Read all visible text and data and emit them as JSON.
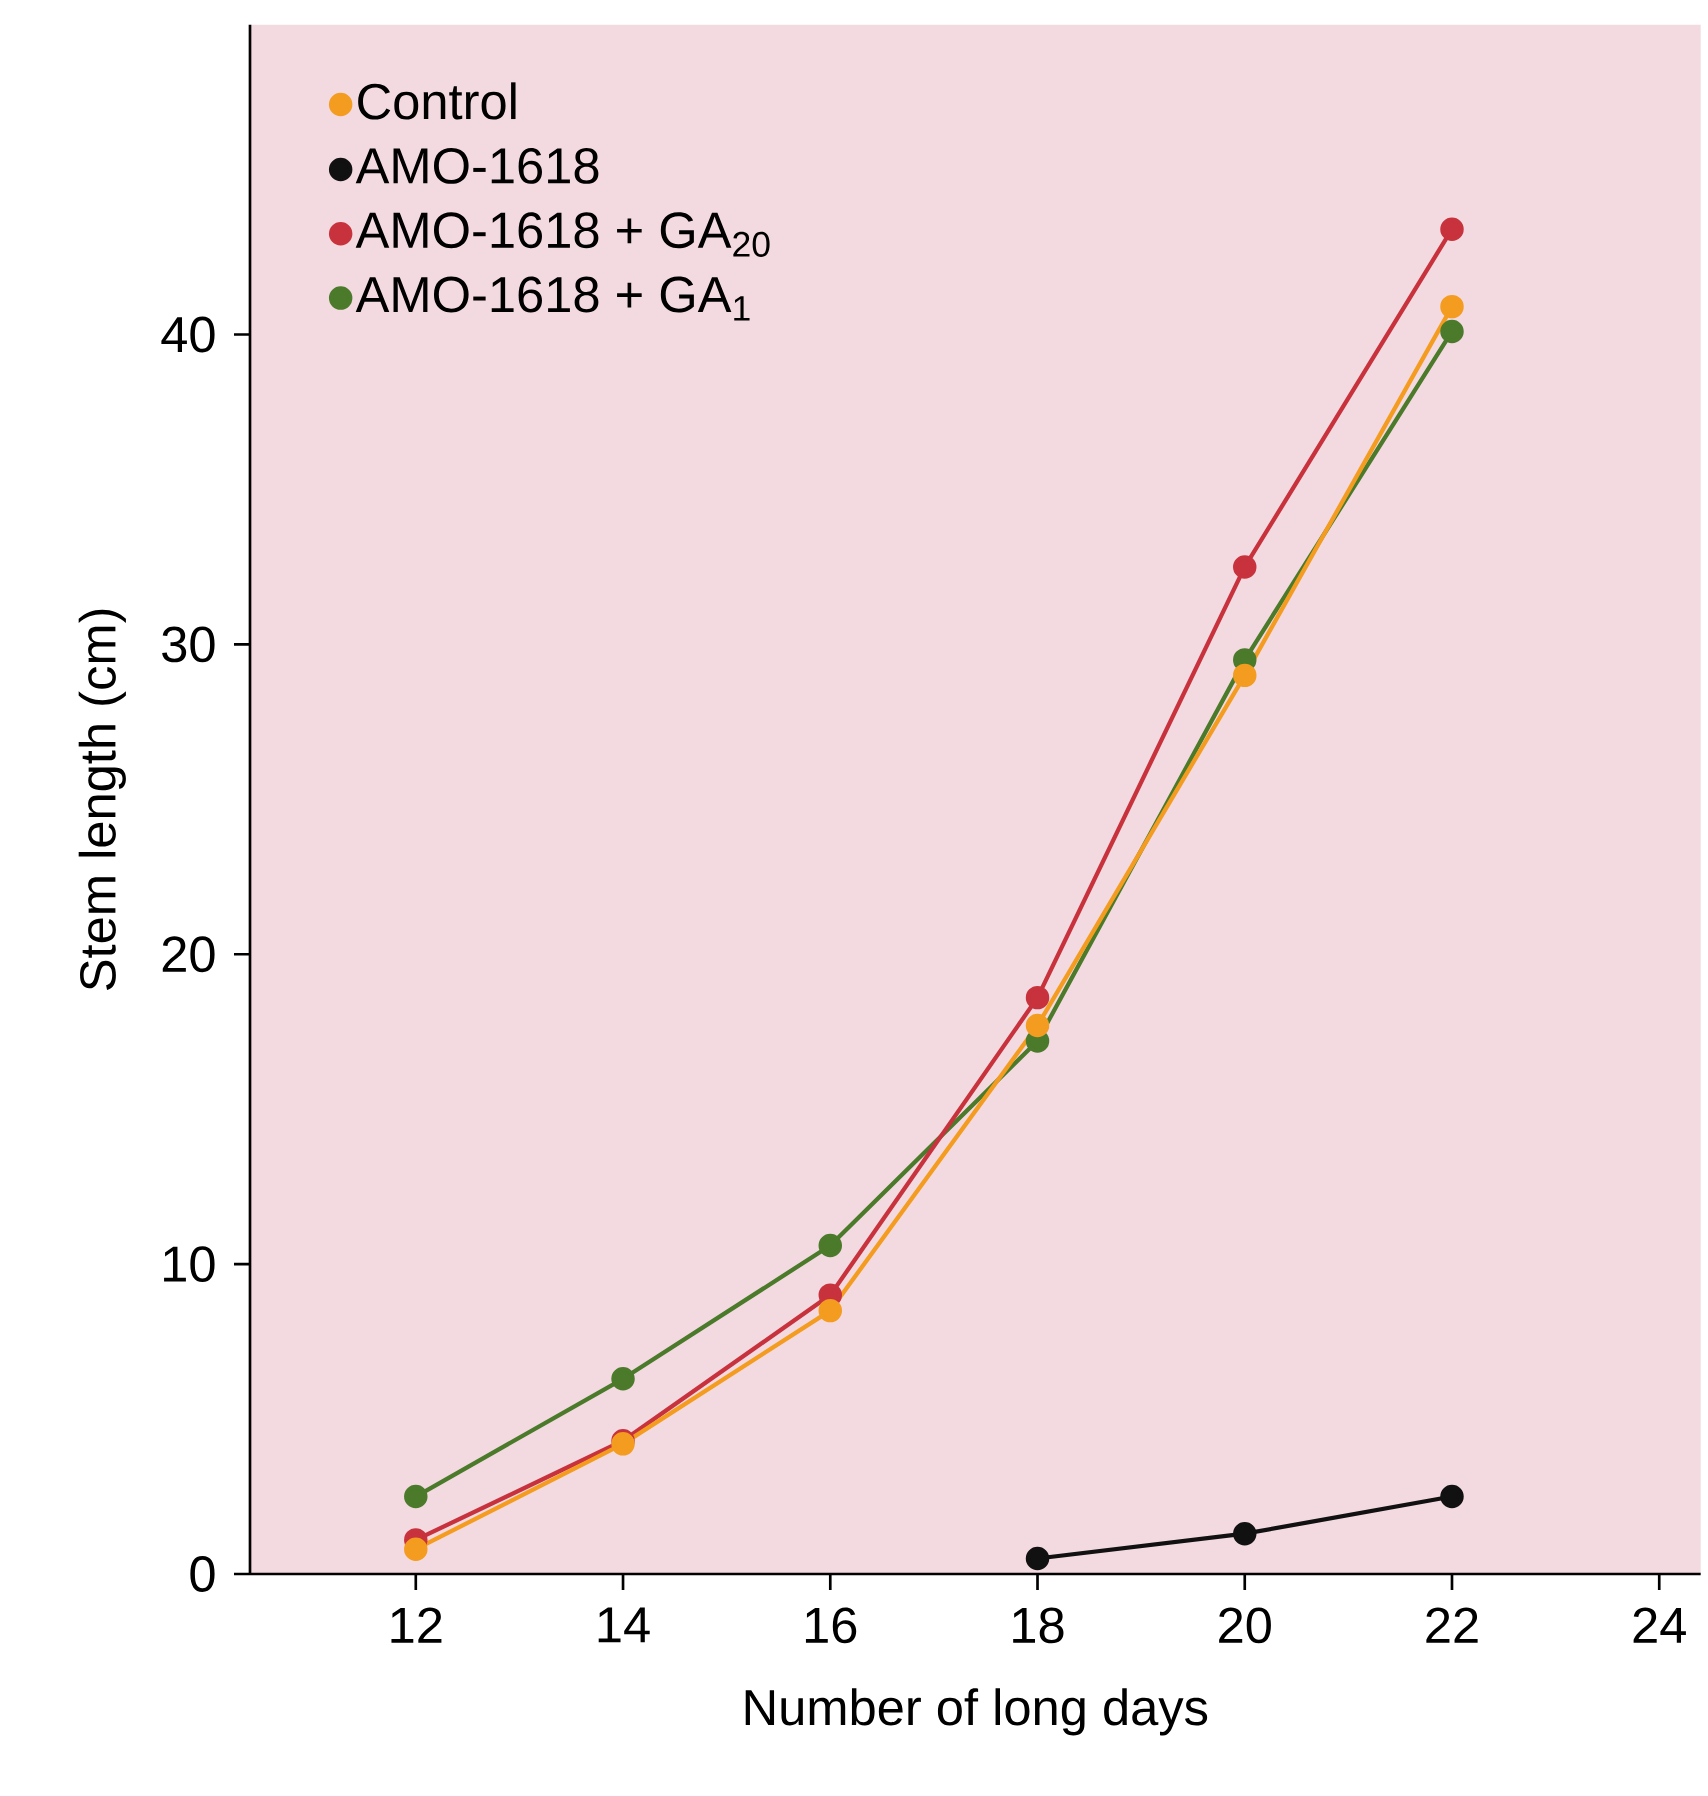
{
  "chart_data": {
    "type": "line",
    "xlabel": "Number of long days",
    "ylabel": "Stem length (cm)",
    "x": [
      12,
      14,
      16,
      18,
      20,
      22
    ],
    "xlim": [
      10.4,
      24.4
    ],
    "xticks": [
      12,
      14,
      16,
      18,
      20,
      22,
      24
    ],
    "ylim": [
      0,
      50
    ],
    "yticks": [
      {
        "value": 0,
        "label": "0"
      },
      10,
      20,
      30,
      40
    ],
    "grid": false,
    "legend": "top left",
    "marker": "circle",
    "line_style": "solid",
    "series": [
      {
        "name": "Control",
        "color": "#f39c1f",
        "values": [
          0.8,
          4.2,
          8.5,
          17.7,
          29.0,
          40.9
        ]
      },
      {
        "name": "AMO-1618",
        "color": "#111111",
        "values": [
          null,
          null,
          null,
          0.5,
          1.3,
          2.5
        ]
      },
      {
        "name": "AMO-1618 + GA$_{20}$",
        "color": "#c8323c",
        "values": [
          1.1,
          4.3,
          9.0,
          18.6,
          32.5,
          43.4
        ]
      },
      {
        "name": "AMO-1618 + GA$_{1}$",
        "color": "#4a7a2a",
        "values": [
          2.5,
          6.3,
          10.6,
          17.2,
          29.5,
          40.1
        ]
      }
    ]
  }
}
